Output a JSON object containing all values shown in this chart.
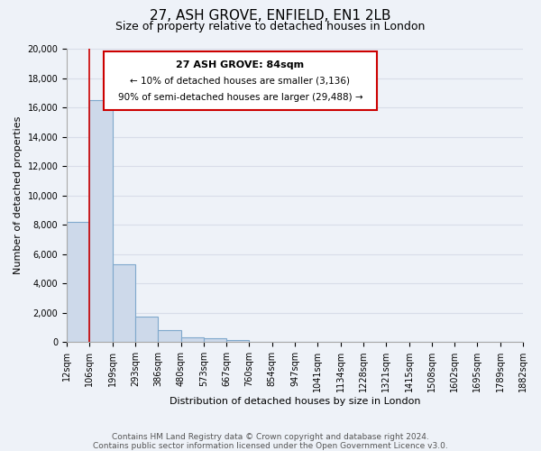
{
  "title": "27, ASH GROVE, ENFIELD, EN1 2LB",
  "subtitle": "Size of property relative to detached houses in London",
  "xlabel": "Distribution of detached houses by size in London",
  "ylabel": "Number of detached properties",
  "bar_values": [
    8200,
    16500,
    5300,
    1750,
    800,
    300,
    250,
    150,
    0,
    0,
    0,
    0,
    0,
    0,
    0,
    0,
    0,
    0,
    0,
    0
  ],
  "bar_labels": [
    "12sqm",
    "106sqm",
    "199sqm",
    "293sqm",
    "386sqm",
    "480sqm",
    "573sqm",
    "667sqm",
    "760sqm",
    "854sqm",
    "947sqm",
    "1041sqm",
    "1134sqm",
    "1228sqm",
    "1321sqm",
    "1415sqm",
    "1508sqm",
    "1602sqm",
    "1695sqm",
    "1789sqm",
    "1882sqm"
  ],
  "bar_color": "#cdd9ea",
  "bar_edge_color": "#7fa8cc",
  "ylim": [
    0,
    20000
  ],
  "yticks": [
    0,
    2000,
    4000,
    6000,
    8000,
    10000,
    12000,
    14000,
    16000,
    18000,
    20000
  ],
  "annotation_title": "27 ASH GROVE: 84sqm",
  "annotation_line1": "← 10% of detached houses are smaller (3,136)",
  "annotation_line2": "90% of semi-detached houses are larger (29,488) →",
  "annotation_box_color": "#ffffff",
  "annotation_box_edge": "#cc0000",
  "red_line_color": "#cc0000",
  "footer_line1": "Contains HM Land Registry data © Crown copyright and database right 2024.",
  "footer_line2": "Contains public sector information licensed under the Open Government Licence v3.0.",
  "background_color": "#eef2f8",
  "grid_color": "#d8dde8",
  "title_fontsize": 11,
  "subtitle_fontsize": 9,
  "axis_label_fontsize": 8,
  "tick_fontsize": 7,
  "footer_fontsize": 6.5
}
